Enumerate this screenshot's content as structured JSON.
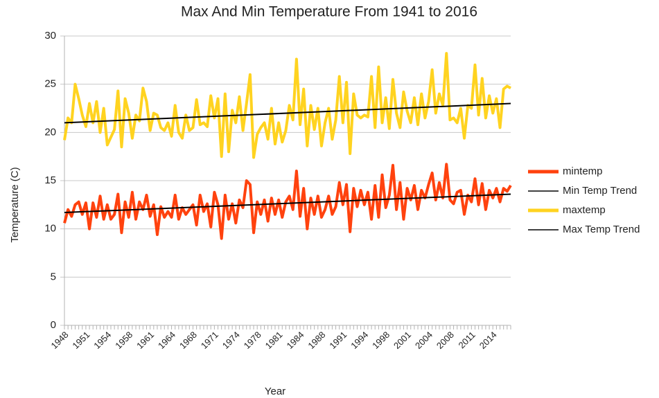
{
  "chart_data": {
    "type": "line",
    "title": "Max And Min Temperature From 1941 to 2016",
    "x_label": "Year",
    "y_label": "Temperature (C)",
    "categories": [
      "1948",
      null,
      null,
      null,
      null,
      null,
      "1951",
      null,
      null,
      null,
      null,
      null,
      "1954",
      null,
      null,
      null,
      null,
      null,
      "1958",
      null,
      null,
      null,
      null,
      null,
      "1961",
      null,
      null,
      null,
      null,
      null,
      "1964",
      null,
      null,
      null,
      null,
      null,
      "1968",
      null,
      null,
      null,
      null,
      null,
      "1971",
      null,
      null,
      null,
      null,
      null,
      "1974",
      null,
      null,
      null,
      null,
      null,
      "1978",
      null,
      null,
      null,
      null,
      null,
      "1981",
      null,
      null,
      null,
      null,
      null,
      "1984",
      null,
      null,
      null,
      null,
      null,
      "1988",
      null,
      null,
      null,
      null,
      null,
      "1991",
      null,
      null,
      null,
      null,
      null,
      "1994",
      null,
      null,
      null,
      null,
      null,
      "1998",
      null,
      null,
      null,
      null,
      null,
      "2001",
      null,
      null,
      null,
      null,
      null,
      "2004",
      null,
      null,
      null,
      null,
      null,
      "2008",
      null,
      null,
      null,
      null,
      null,
      "2011",
      null,
      null,
      null,
      null,
      null,
      "2014",
      null,
      null,
      null,
      null,
      null
    ],
    "series": [
      {
        "name": "mintemp",
        "color": "#ff420e",
        "values": [
          10.6,
          12.0,
          11.3,
          12.5,
          12.8,
          11.5,
          12.7,
          10.0,
          12.7,
          11.2,
          13.4,
          11.0,
          12.5,
          11.0,
          11.5,
          13.6,
          9.6,
          12.8,
          11.2,
          13.8,
          11.0,
          12.8,
          12.0,
          13.5,
          11.3,
          12.5,
          9.4,
          12.3,
          11.2,
          11.8,
          11.2,
          13.5,
          11.0,
          12.2,
          11.5,
          12.0,
          12.5,
          10.4,
          13.5,
          11.8,
          12.6,
          10.2,
          13.8,
          12.5,
          9.0,
          13.5,
          11.0,
          12.6,
          10.6,
          13.0,
          12.2,
          15.0,
          14.6,
          9.6,
          12.8,
          11.5,
          13.0,
          10.8,
          13.2,
          11.5,
          13.0,
          11.2,
          12.8,
          13.4,
          12.0,
          16.0,
          11.3,
          14.2,
          10.0,
          13.2,
          11.5,
          13.4,
          11.2,
          12.0,
          13.4,
          11.5,
          12.3,
          14.8,
          12.5,
          14.6,
          9.7,
          14.2,
          12.3,
          14.0,
          12.5,
          13.8,
          11.0,
          14.5,
          11.2,
          15.6,
          12.2,
          13.5,
          16.6,
          12.0,
          14.8,
          11.0,
          14.2,
          13.0,
          14.5,
          12.0,
          14.0,
          13.2,
          14.6,
          15.8,
          13.0,
          14.8,
          13.2,
          16.7,
          13.0,
          12.6,
          13.8,
          14.0,
          11.5,
          13.5,
          12.8,
          15.2,
          12.5,
          14.7,
          12.0,
          14.0,
          13.2,
          14.2,
          12.8,
          14.2,
          13.9,
          14.5
        ]
      },
      {
        "name": "Min Temp Trend",
        "color": "#000000",
        "trend": [
          11.7,
          13.6
        ]
      },
      {
        "name": "maxtemp",
        "color": "#ffd320",
        "values": [
          19.2,
          21.5,
          21.0,
          25.0,
          23.5,
          21.8,
          20.6,
          23.0,
          21.0,
          23.2,
          20.0,
          22.5,
          18.7,
          19.5,
          20.3,
          24.3,
          18.5,
          23.5,
          22.0,
          19.4,
          21.8,
          21.2,
          24.6,
          23.2,
          20.2,
          22.0,
          21.8,
          20.5,
          20.2,
          21.0,
          19.6,
          22.8,
          20.0,
          19.4,
          21.8,
          20.2,
          20.5,
          23.4,
          20.8,
          21.0,
          20.6,
          23.8,
          21.5,
          23.5,
          17.5,
          24.0,
          18.0,
          22.3,
          21.0,
          23.7,
          20.2,
          23.0,
          26.0,
          17.4,
          19.8,
          20.5,
          21.0,
          19.3,
          22.5,
          18.8,
          21.0,
          19.0,
          20.2,
          22.8,
          21.3,
          27.6,
          20.8,
          24.5,
          18.6,
          22.8,
          20.3,
          22.5,
          18.6,
          21.0,
          22.5,
          19.3,
          21.3,
          25.8,
          21.0,
          25.2,
          17.8,
          24.0,
          21.8,
          21.5,
          21.8,
          21.6,
          25.8,
          20.5,
          26.8,
          21.0,
          23.6,
          20.4,
          25.5,
          22.0,
          20.5,
          24.2,
          22.2,
          21.0,
          23.6,
          20.8,
          24.0,
          21.5,
          23.2,
          26.5,
          22.0,
          24.0,
          22.8,
          28.2,
          21.3,
          21.5,
          21.0,
          22.5,
          19.4,
          22.8,
          22.5,
          27.0,
          21.8,
          25.6,
          21.5,
          23.8,
          22.0,
          23.5,
          20.5,
          24.5,
          24.8,
          24.6
        ]
      },
      {
        "name": "Max Temp Trend",
        "color": "#000000",
        "trend": [
          21.0,
          23.0
        ]
      }
    ],
    "ylim": [
      0,
      30
    ],
    "yticks": [
      0,
      5,
      10,
      15,
      20,
      25,
      30
    ],
    "grid": true
  }
}
